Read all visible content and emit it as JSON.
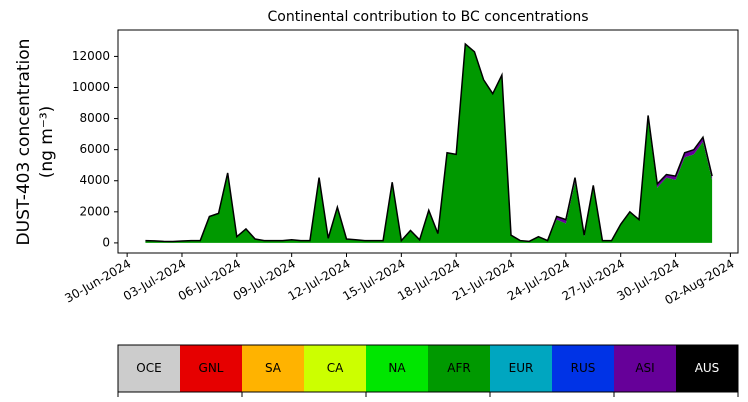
{
  "chart_data": {
    "type": "stacked_area",
    "title": "Continental contribution to BC concentrations",
    "ylabel": [
      "DUST-403 concentration",
      "(ng m⁻³)"
    ],
    "x": [
      "2024-07-01T00:00",
      "2024-07-01T12:00",
      "2024-07-02T00:00",
      "2024-07-02T12:00",
      "2024-07-03T00:00",
      "2024-07-03T12:00",
      "2024-07-04T00:00",
      "2024-07-04T12:00",
      "2024-07-05T00:00",
      "2024-07-05T12:00",
      "2024-07-06T00:00",
      "2024-07-06T12:00",
      "2024-07-07T00:00",
      "2024-07-07T12:00",
      "2024-07-08T00:00",
      "2024-07-08T12:00",
      "2024-07-09T00:00",
      "2024-07-09T12:00",
      "2024-07-10T00:00",
      "2024-07-10T12:00",
      "2024-07-11T00:00",
      "2024-07-11T12:00",
      "2024-07-12T00:00",
      "2024-07-12T12:00",
      "2024-07-13T00:00",
      "2024-07-13T12:00",
      "2024-07-14T00:00",
      "2024-07-14T12:00",
      "2024-07-15T00:00",
      "2024-07-15T12:00",
      "2024-07-16T00:00",
      "2024-07-16T12:00",
      "2024-07-17T00:00",
      "2024-07-17T12:00",
      "2024-07-18T00:00",
      "2024-07-18T12:00",
      "2024-07-19T00:00",
      "2024-07-19T12:00",
      "2024-07-20T00:00",
      "2024-07-20T12:00",
      "2024-07-21T00:00",
      "2024-07-21T12:00",
      "2024-07-22T00:00",
      "2024-07-22T12:00",
      "2024-07-23T00:00",
      "2024-07-23T12:00",
      "2024-07-24T00:00",
      "2024-07-24T12:00",
      "2024-07-25T00:00",
      "2024-07-25T12:00",
      "2024-07-26T00:00",
      "2024-07-26T12:00",
      "2024-07-27T00:00",
      "2024-07-27T12:00",
      "2024-07-28T00:00",
      "2024-07-28T12:00",
      "2024-07-29T00:00",
      "2024-07-29T12:00",
      "2024-07-30T00:00",
      "2024-07-30T12:00",
      "2024-07-31T00:00",
      "2024-07-31T12:00",
      "2024-08-01T00:00"
    ],
    "series": [
      {
        "name": "AFR",
        "color": "#009900",
        "values": [
          140,
          120,
          90,
          80,
          110,
          140,
          140,
          1690,
          1880,
          4480,
          380,
          880,
          230,
          130,
          130,
          130,
          180,
          130,
          130,
          4180,
          280,
          2200,
          230,
          180,
          130,
          130,
          130,
          3820,
          130,
          780,
          180,
          2080,
          580,
          5780,
          5680,
          12780,
          12280,
          10480,
          9580,
          10780,
          480,
          130,
          80,
          380,
          130,
          1500,
          1250,
          3900,
          400,
          3500,
          130,
          130,
          1180,
          1980,
          1480,
          7900,
          3550,
          4200,
          4050,
          5500,
          5700,
          6500,
          4050
        ]
      },
      {
        "name": "ASI",
        "color": "#660099",
        "values": [
          10,
          10,
          10,
          10,
          10,
          10,
          10,
          10,
          20,
          20,
          20,
          20,
          20,
          20,
          20,
          20,
          20,
          20,
          20,
          20,
          20,
          100,
          20,
          20,
          20,
          20,
          20,
          80,
          20,
          20,
          20,
          20,
          20,
          20,
          20,
          20,
          20,
          20,
          20,
          20,
          20,
          20,
          20,
          20,
          20,
          200,
          250,
          300,
          100,
          200,
          20,
          20,
          20,
          20,
          20,
          300,
          250,
          200,
          250,
          300,
          300,
          300,
          250
        ]
      }
    ],
    "outline_color": "#000000",
    "xlim": [
      "2024-06-29T12:00",
      "2024-08-02T10:00"
    ],
    "xticks": [
      {
        "value": "2024-06-30T00:00",
        "label": "30-Jun-2024"
      },
      {
        "value": "2024-07-03T00:00",
        "label": "03-Jul-2024"
      },
      {
        "value": "2024-07-06T00:00",
        "label": "06-Jul-2024"
      },
      {
        "value": "2024-07-09T00:00",
        "label": "09-Jul-2024"
      },
      {
        "value": "2024-07-12T00:00",
        "label": "12-Jul-2024"
      },
      {
        "value": "2024-07-15T00:00",
        "label": "15-Jul-2024"
      },
      {
        "value": "2024-07-18T00:00",
        "label": "18-Jul-2024"
      },
      {
        "value": "2024-07-21T00:00",
        "label": "21-Jul-2024"
      },
      {
        "value": "2024-07-24T00:00",
        "label": "24-Jul-2024"
      },
      {
        "value": "2024-07-27T00:00",
        "label": "27-Jul-2024"
      },
      {
        "value": "2024-07-30T00:00",
        "label": "30-Jul-2024"
      },
      {
        "value": "2024-08-02T00:00",
        "label": "02-Aug-2024"
      }
    ],
    "ylim": [
      -650,
      13700
    ],
    "yticks": [
      0,
      2000,
      4000,
      6000,
      8000,
      10000,
      12000
    ],
    "colorbar": {
      "labels": [
        "OCE",
        "GNL",
        "SA",
        "CA",
        "NA",
        "AFR",
        "EUR",
        "RUS",
        "ASI",
        "AUS"
      ],
      "colors": [
        "#cccccc",
        "#e60000",
        "#ffb300",
        "#ccff00",
        "#00e600",
        "#009900",
        "#00a6c0",
        "#0033e6",
        "#660099",
        "#000000"
      ],
      "text_colors": [
        "#000000",
        "#000000",
        "#000000",
        "#000000",
        "#000000",
        "#000000",
        "#000000",
        "#000000",
        "#000000",
        "#ffffff"
      ]
    }
  }
}
